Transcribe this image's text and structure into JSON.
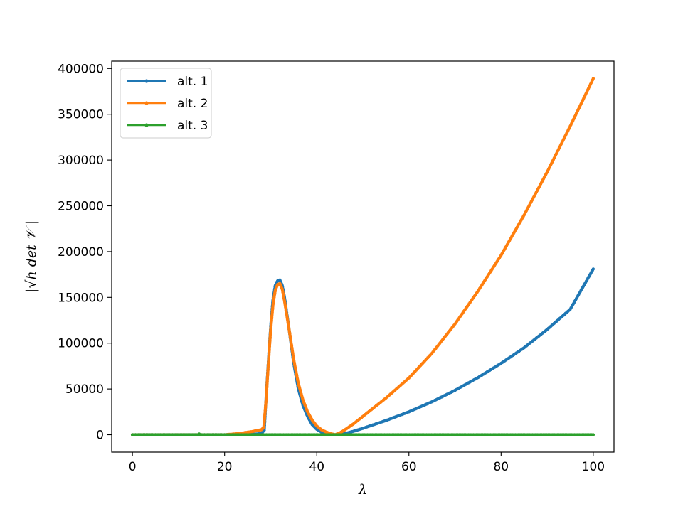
{
  "chart_data": {
    "type": "line",
    "title": "",
    "xlabel": "λ",
    "ylabel": "|√h det 𝒱 |",
    "xlim": [
      -4.5,
      104.5
    ],
    "ylim": [
      -19000,
      408000
    ],
    "xticks": [
      0,
      20,
      40,
      60,
      80,
      100
    ],
    "yticks": [
      0,
      50000,
      100000,
      150000,
      200000,
      250000,
      300000,
      350000,
      400000
    ],
    "grid": false,
    "legend_position": "top-left",
    "series": [
      {
        "name": "alt. 1",
        "color": "#1f77b4",
        "points": [
          [
            0,
            0
          ],
          [
            10,
            0
          ],
          [
            20,
            0
          ],
          [
            25,
            200
          ],
          [
            27,
            800
          ],
          [
            28,
            1500
          ],
          [
            28.6,
            5000
          ],
          [
            29,
            40000
          ],
          [
            29.5,
            80000
          ],
          [
            30,
            118000
          ],
          [
            30.5,
            148000
          ],
          [
            31,
            163000
          ],
          [
            31.5,
            168000
          ],
          [
            32,
            169000
          ],
          [
            32.5,
            163000
          ],
          [
            33,
            150000
          ],
          [
            34,
            115000
          ],
          [
            35,
            78000
          ],
          [
            36,
            50000
          ],
          [
            37,
            32000
          ],
          [
            38,
            20000
          ],
          [
            39,
            11000
          ],
          [
            40,
            6000
          ],
          [
            41,
            3000
          ],
          [
            42,
            1200
          ],
          [
            43,
            400
          ],
          [
            44,
            0
          ],
          [
            45,
            300
          ],
          [
            46,
            1200
          ],
          [
            48,
            3800
          ],
          [
            50,
            7000
          ],
          [
            55,
            15500
          ],
          [
            60,
            25000
          ],
          [
            65,
            36000
          ],
          [
            70,
            48500
          ],
          [
            75,
            62500
          ],
          [
            80,
            78000
          ],
          [
            85,
            95000
          ],
          [
            90,
            115000
          ],
          [
            95,
            137000
          ],
          [
            100,
            181000
          ]
        ]
      },
      {
        "name": "alt. 2",
        "color": "#ff7f0e",
        "points": [
          [
            0,
            0
          ],
          [
            10,
            0
          ],
          [
            20,
            0
          ],
          [
            22,
            800
          ],
          [
            24,
            2000
          ],
          [
            26,
            3500
          ],
          [
            27,
            4500
          ],
          [
            28,
            5500
          ],
          [
            28.5,
            8000
          ],
          [
            29,
            38000
          ],
          [
            29.5,
            78000
          ],
          [
            30,
            115000
          ],
          [
            30.5,
            142000
          ],
          [
            31,
            158000
          ],
          [
            31.5,
            164000
          ],
          [
            32,
            165000
          ],
          [
            32.5,
            159000
          ],
          [
            33,
            146000
          ],
          [
            34,
            115000
          ],
          [
            35,
            82000
          ],
          [
            36,
            56000
          ],
          [
            37,
            38000
          ],
          [
            38,
            25000
          ],
          [
            39,
            16000
          ],
          [
            40,
            9500
          ],
          [
            41,
            5500
          ],
          [
            42,
            3000
          ],
          [
            43,
            1200
          ],
          [
            44,
            0
          ],
          [
            45,
            2000
          ],
          [
            46,
            5000
          ],
          [
            48,
            12000
          ],
          [
            50,
            20000
          ],
          [
            55,
            40000
          ],
          [
            60,
            62000
          ],
          [
            65,
            89000
          ],
          [
            70,
            121000
          ],
          [
            75,
            157000
          ],
          [
            80,
            196000
          ],
          [
            85,
            240000
          ],
          [
            90,
            287000
          ],
          [
            95,
            337000
          ],
          [
            100,
            389000
          ]
        ]
      },
      {
        "name": "alt. 3",
        "color": "#2ca02c",
        "points": [
          [
            0,
            0
          ],
          [
            14.5,
            0
          ],
          [
            14.5,
            800
          ],
          [
            14.6,
            0
          ],
          [
            50,
            0
          ],
          [
            100,
            0
          ]
        ]
      }
    ]
  }
}
